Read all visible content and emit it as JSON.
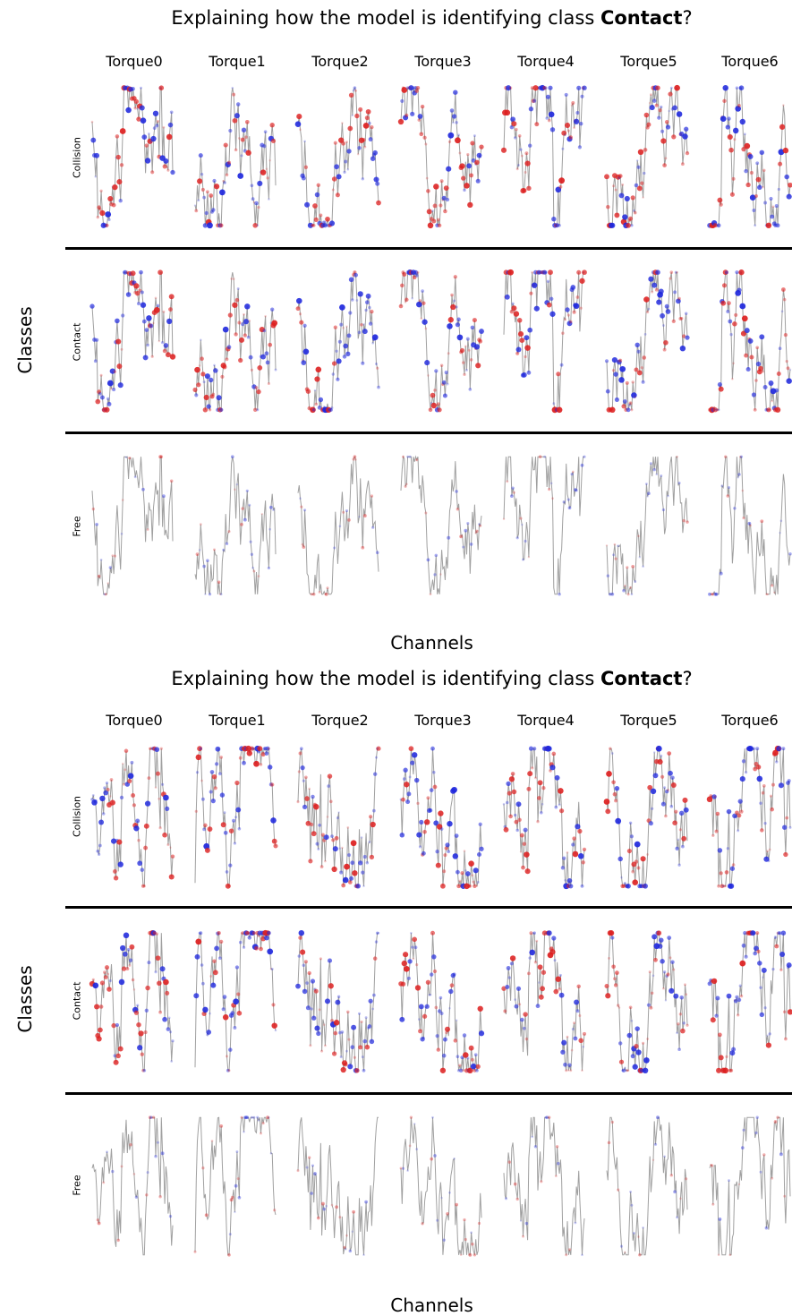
{
  "chart_data": [
    {
      "type": "scatter",
      "title_prefix": "Explaining how the model is identifying class ",
      "title_bold": "Contact",
      "title_suffix": "?",
      "channels": [
        "Torque0",
        "Torque1",
        "Torque2",
        "Torque3",
        "Torque4",
        "Torque5",
        "Torque6"
      ],
      "classes": [
        "Collision",
        "Contact",
        "Free"
      ],
      "xlabel": "Channels",
      "ylabel": "Classes",
      "colors": {
        "line": "#a0a0a0",
        "positive": "#dd1f1f",
        "negative": "#1f28dd"
      },
      "attribution_intensity": [
        1.0,
        1.0,
        0.35
      ],
      "seed": 11
    },
    {
      "type": "scatter",
      "title_prefix": "Explaining how the model is identifying class ",
      "title_bold": "Contact",
      "title_suffix": "?",
      "channels": [
        "Torque0",
        "Torque1",
        "Torque2",
        "Torque3",
        "Torque4",
        "Torque5",
        "Torque6"
      ],
      "classes": [
        "Collision",
        "Contact",
        "Free"
      ],
      "xlabel": "Channels",
      "ylabel": "Classes",
      "colors": {
        "line": "#a0a0a0",
        "positive": "#dd1f1f",
        "negative": "#1f28dd"
      },
      "attribution_intensity": [
        1.0,
        1.0,
        0.35
      ],
      "seed": 29
    }
  ]
}
